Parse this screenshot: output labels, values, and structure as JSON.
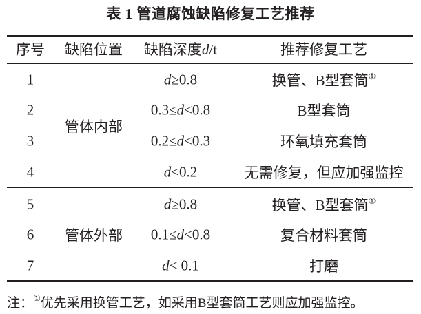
{
  "title": "表 1  管道腐蚀缺陷修复工艺推荐",
  "headers": {
    "no": "序号",
    "location": "缺陷位置",
    "depth_pre": "缺陷深度",
    "depth_var": "d",
    "depth_post": "/t",
    "process": "推荐修复工艺"
  },
  "groups": [
    {
      "location": "管体内部"
    },
    {
      "location": "管体外部"
    }
  ],
  "rows": [
    {
      "no": "1",
      "pre": "",
      "var": "d",
      "post": "≥0.8",
      "process": "换管、B型套筒",
      "mark": "①"
    },
    {
      "no": "2",
      "pre": "0.3≤",
      "var": "d",
      "post": "<0.8",
      "process": "B型套筒",
      "mark": ""
    },
    {
      "no": "3",
      "pre": "0.2≤",
      "var": "d",
      "post": "<0.3",
      "process": "环氧填充套筒",
      "mark": ""
    },
    {
      "no": "4",
      "pre": "",
      "var": "d",
      "post": "<0.2",
      "process": "无需修复，但应加强监控",
      "mark": ""
    },
    {
      "no": "5",
      "pre": "",
      "var": "d",
      "post": "≥0.8",
      "process": "换管、B型套筒",
      "mark": "①"
    },
    {
      "no": "6",
      "pre": "0.1≤",
      "var": "d",
      "post": "<0.8",
      "process": "复合材料套筒",
      "mark": ""
    },
    {
      "no": "7",
      "pre": "",
      "var": "d",
      "post": "< 0.1",
      "process": "打磨",
      "mark": ""
    }
  ],
  "note": {
    "prefix": "注：",
    "mark": "①",
    "text": "优先采用换管工艺，如采用B型套筒工艺则应加强监控。"
  }
}
